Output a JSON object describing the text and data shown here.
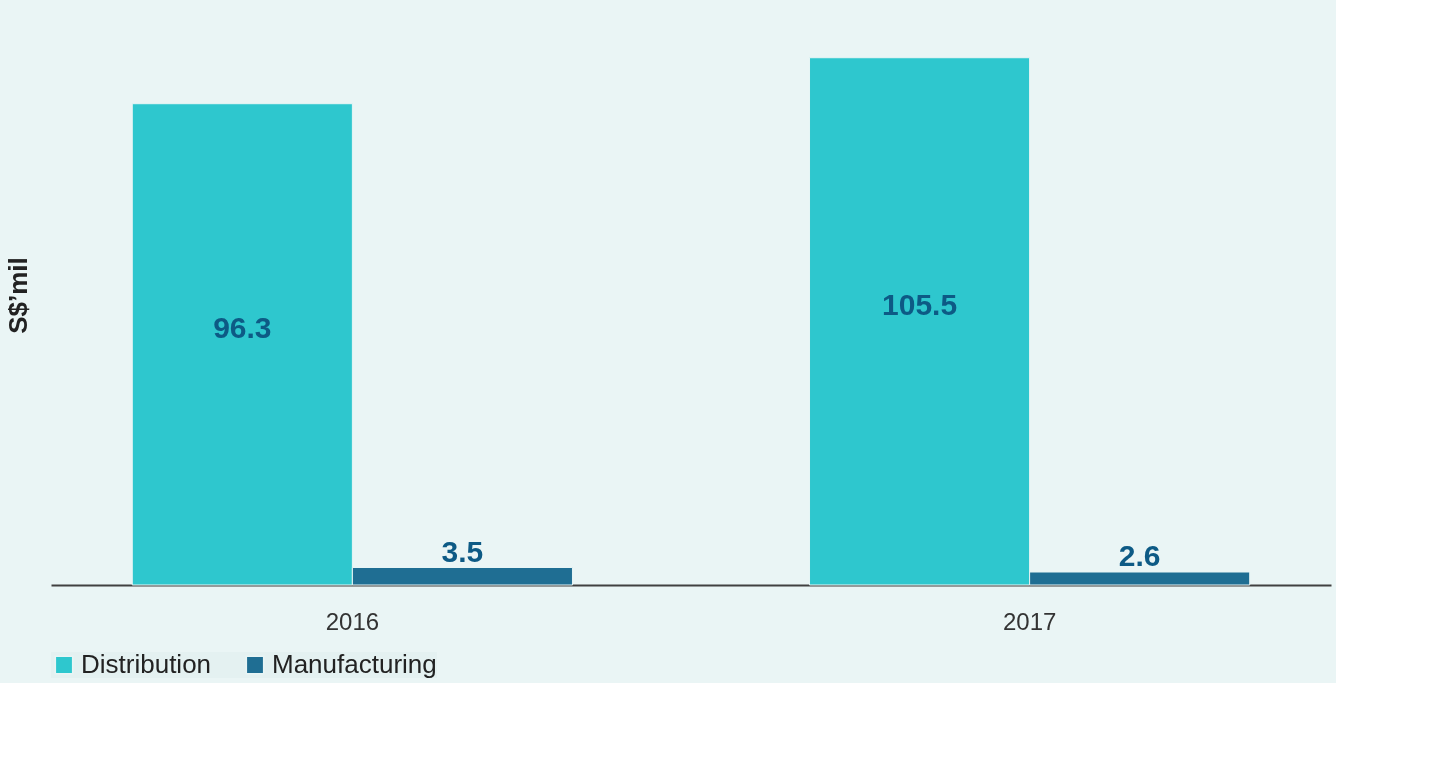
{
  "chart_data": {
    "type": "bar",
    "ylabel": "S$’mil",
    "categories": [
      "2016",
      "2017"
    ],
    "series": [
      {
        "name": "Distribution",
        "color": "#2ec7ce",
        "values": [
          96.3,
          105.5
        ]
      },
      {
        "name": "Manufacturing",
        "color": "#1f6e93",
        "values": [
          3.5,
          2.6
        ]
      }
    ],
    "data_labels": true,
    "legend": "bottom",
    "grid": false,
    "tick_labels": "x"
  }
}
